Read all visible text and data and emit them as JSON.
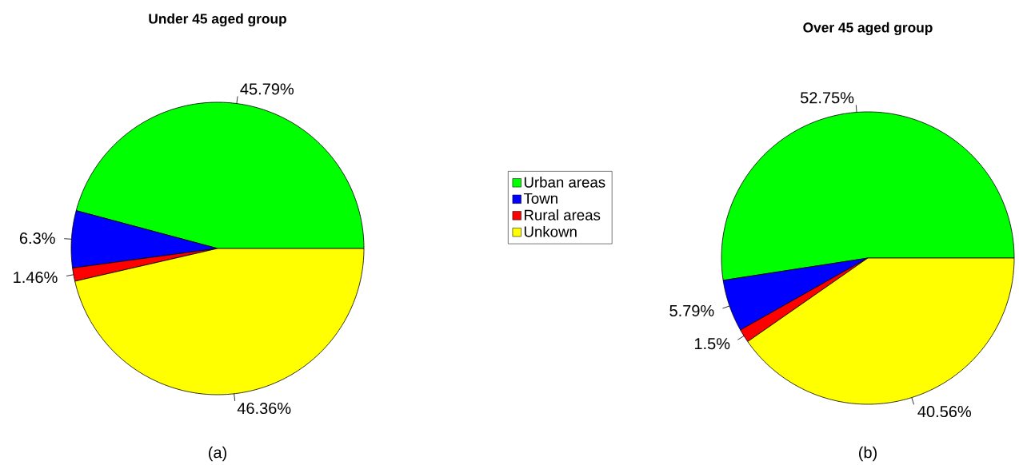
{
  "chart_data": [
    {
      "type": "pie",
      "title": "Under 45 aged group",
      "xlabel": "(a)",
      "categories": [
        "Urban areas",
        "Town",
        "Rural areas",
        "Unkown"
      ],
      "values": [
        45.79,
        6.3,
        1.46,
        46.36
      ],
      "value_labels": [
        "45.79%",
        "6.3%",
        "1.46%",
        "46.36%"
      ],
      "colors": [
        "#00ff00",
        "#0000ff",
        "#ff0000",
        "#ffff00"
      ],
      "legend": "right"
    },
    {
      "type": "pie",
      "title": "Over 45 aged group",
      "xlabel": "(b)",
      "categories": [
        null,
        null,
        null,
        null
      ],
      "values": [
        52.75,
        5.79,
        1.5,
        40.56
      ],
      "value_labels": [
        "52.75%",
        "5.79%",
        "1.5%",
        "40.56%"
      ],
      "colors": [
        "#00ff00",
        "#0000ff",
        "#ff0000",
        "#ffff00"
      ]
    }
  ]
}
